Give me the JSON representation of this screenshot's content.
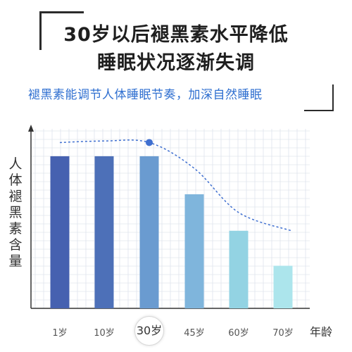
{
  "headline": {
    "line1": "30岁以后褪黑素水平降低",
    "line2": "睡眠状况逐渐失调"
  },
  "subtitle": "褪黑素能调节人体睡眠节奏，加深自然睡眠",
  "chart_data": {
    "type": "bar",
    "categories": [
      "1岁",
      "10岁",
      "30岁",
      "45岁",
      "60岁",
      "70岁"
    ],
    "values": [
      100,
      100,
      100,
      75,
      51,
      28
    ],
    "highlight_category": "30岁",
    "xlabel": "年龄",
    "ylabel": "人体褪黑素含量",
    "ylim": [
      0,
      118
    ],
    "grid": true,
    "trend_curve": [
      [
        0,
        109
      ],
      [
        1,
        110
      ],
      [
        2,
        109
      ],
      [
        3,
        92
      ],
      [
        4,
        63
      ],
      [
        5,
        51
      ]
    ],
    "colors": {
      "bars": [
        "#4661b0",
        "#4d70b8",
        "#6a9bd0",
        "#7fb5dc",
        "#93d3e3",
        "#ace5ec"
      ],
      "trend": "#3f6fd0",
      "grid": "#d6dbe6",
      "subtitle": "#2f6fd0"
    }
  }
}
